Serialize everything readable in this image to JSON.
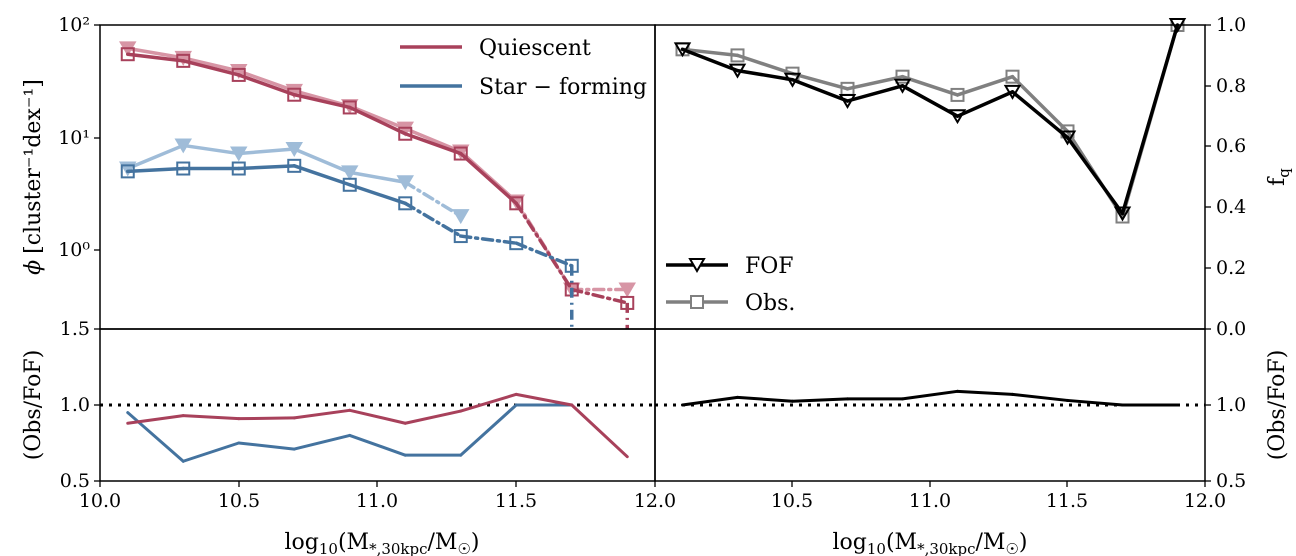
{
  "chart_data": [
    {
      "type": "line",
      "panel": "top-left",
      "ylabel": "φ [cluster⁻¹dex⁻¹]",
      "yscale": "symlog",
      "ylim": [
        0,
        100
      ],
      "xlim": [
        10.0,
        12.0
      ],
      "ytick_labels": [
        "10⁰",
        "10¹",
        "10²"
      ],
      "x": [
        10.1,
        10.3,
        10.5,
        10.7,
        10.9,
        11.1,
        11.3,
        11.5,
        11.7,
        11.9
      ],
      "series": [
        {
          "name": "Quiescent",
          "kind": "Obs.",
          "color": "#a8415b",
          "values": [
            55,
            48,
            36,
            24,
            18.5,
            10.8,
            7.2,
            2.6,
            0.5,
            0.33
          ]
        },
        {
          "kind": "FOF",
          "color": "#d795a5",
          "values": [
            62,
            51,
            39,
            26,
            19,
            12,
            7.5,
            2.7,
            0.5,
            0.5
          ]
        },
        {
          "name": "Star − forming",
          "kind": "Obs.",
          "color": "#44739f",
          "values": [
            5.0,
            5.3,
            5.3,
            5.6,
            3.8,
            2.6,
            1.33,
            1.15,
            0.8,
            null
          ]
        },
        {
          "kind": "FOF",
          "color": "#9fbcd8",
          "values": [
            5.3,
            8.5,
            7.2,
            7.9,
            4.9,
            4.0,
            2.0,
            null,
            null,
            null
          ]
        }
      ],
      "legend": {
        "position": "top-right",
        "entries": [
          "Quiescent",
          "Star − forming"
        ]
      }
    },
    {
      "type": "line",
      "panel": "top-right",
      "ylabel": "f_q",
      "xlim": [
        12.0,
        14.0
      ],
      "ylim": [
        0.0,
        1.0
      ],
      "ytick_labels": [
        "0.0",
        "0.2",
        "0.4",
        "0.6",
        "0.8",
        "1.0"
      ],
      "x": [
        12.1,
        12.3,
        12.5,
        12.7,
        12.9,
        13.1,
        13.3,
        13.5,
        13.7,
        13.9
      ],
      "series": [
        {
          "name": "FOF",
          "color": "#000000",
          "values": [
            0.92,
            0.85,
            0.82,
            0.75,
            0.8,
            0.7,
            0.78,
            0.63,
            0.38,
            1.0
          ]
        },
        {
          "name": "Obs.",
          "color": "#808080",
          "values": [
            0.92,
            0.9,
            0.84,
            0.79,
            0.83,
            0.77,
            0.83,
            0.65,
            0.37,
            1.0
          ]
        }
      ],
      "legend": {
        "position": "bottom-left",
        "entries": [
          "FOF",
          "Obs."
        ]
      }
    },
    {
      "type": "line",
      "panel": "bottom-left",
      "ylabel": "(Obs/FoF)",
      "xlabel": "log₁₀(M*,30kpc/M☉)",
      "xlim": [
        10.0,
        12.0
      ],
      "ylim": [
        0.5,
        1.5
      ],
      "x": [
        10.1,
        10.3,
        10.5,
        10.7,
        10.9,
        11.1,
        11.3,
        11.5,
        11.7,
        11.9
      ],
      "series": [
        {
          "color": "#a8415b",
          "values": [
            0.88,
            0.93,
            0.91,
            0.915,
            0.965,
            0.88,
            0.96,
            1.07,
            1.0,
            0.66
          ]
        },
        {
          "color": "#44739f",
          "values": [
            0.95,
            0.63,
            0.75,
            0.71,
            0.8,
            0.67,
            0.67,
            1.0,
            1.0,
            null
          ]
        }
      ],
      "reference_line": 1.0
    },
    {
      "type": "line",
      "panel": "bottom-right",
      "ylabel": "(Obs/FoF)",
      "xlabel": "log₁₀(M*,30kpc/M☉)",
      "xlim": [
        12.0,
        14.0
      ],
      "ylim": [
        0.5,
        1.5
      ],
      "x": [
        12.1,
        12.3,
        12.5,
        12.7,
        12.9,
        13.1,
        13.3,
        13.5,
        13.7,
        13.9
      ],
      "series": [
        {
          "color": "#000000",
          "values": [
            1.0,
            1.05,
            1.025,
            1.04,
            1.04,
            1.09,
            1.07,
            1.03,
            1.0,
            1.0
          ]
        }
      ],
      "reference_line": 1.0
    }
  ],
  "axes": {
    "tl_yticks": [
      "10⁰",
      "10¹",
      "10²"
    ],
    "tr_yticks": [
      "0.0",
      "0.2",
      "0.4",
      "0.6",
      "0.8",
      "1.0"
    ],
    "bl_yticks": [
      "0.5",
      "1.0",
      "1.5"
    ],
    "br_yticks": [
      "0.5",
      "1.0"
    ],
    "bl_xticks": [
      "10.0",
      "10.5",
      "11.0",
      "11.5"
    ],
    "br_xticks": [
      "12.0",
      "10.5",
      "11.0",
      "11.5",
      "12.0"
    ]
  },
  "legends": {
    "quiescent": "Quiescent",
    "star_forming": "Star − forming",
    "fof": "FOF",
    "obs": "Obs."
  },
  "labels": {
    "tl_ylabel_phi": "ϕ",
    "tl_ylabel_rest": "[cluster⁻¹dex⁻¹]",
    "tr_ylabel": "f",
    "tr_ylabel_sub": "q",
    "bottom_ylabel": "(Obs/FoF)",
    "xlabel_main": "log",
    "xlabel_sub10": "10",
    "xlabel_open": "(M",
    "xlabel_sub": "*,30kpc",
    "xlabel_mid": "/M",
    "xlabel_sun": "☉",
    "xlabel_close": ")"
  }
}
